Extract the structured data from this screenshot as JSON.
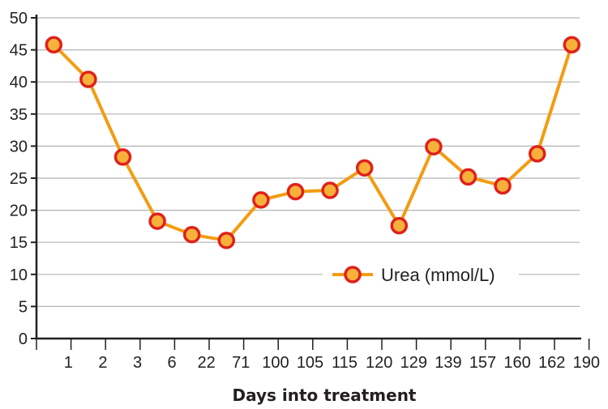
{
  "chart_data": {
    "type": "line",
    "title": "",
    "xlabel": "Days into treatment",
    "ylabel": "",
    "ylim": [
      0,
      50
    ],
    "yticks": [
      "0",
      "5",
      "10",
      "15",
      "20",
      "25",
      "30",
      "35",
      "40",
      "45",
      "50"
    ],
    "grid": "horizontal",
    "legend_position": "lower-right",
    "x_tick_labels": [
      "1",
      "2",
      "3",
      "6",
      "22",
      "71",
      "100",
      "105",
      "115",
      "120",
      "129",
      "139",
      "157",
      "160",
      "162",
      "190"
    ],
    "series": [
      {
        "name": "Urea (mmol/L)",
        "color": "#f39c12",
        "marker_fill": "#f7b13a",
        "marker_edge": "#e0211c",
        "values": [
          45.8,
          40.4,
          28.3,
          18.3,
          16.2,
          15.3,
          21.6,
          22.9,
          23.1,
          26.6,
          17.6,
          29.9,
          25.2,
          23.8,
          28.8,
          45.8
        ]
      }
    ]
  },
  "colors": {
    "axis": "#231f20",
    "grid": "#b3b3b3"
  }
}
